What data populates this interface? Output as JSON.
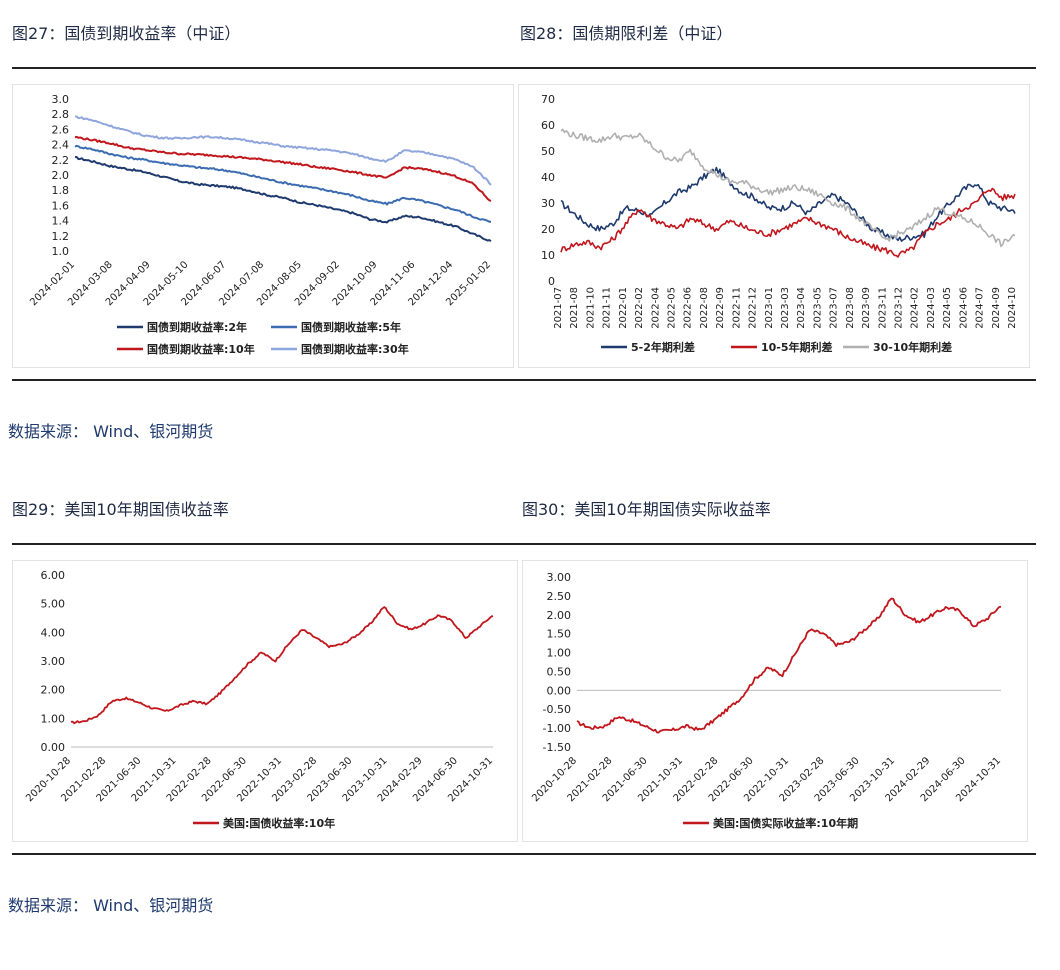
{
  "figures": {
    "fig27_title": "图27：国债到期收益率（中证）",
    "fig28_title": "图28：国债期限利差（中证）",
    "fig29_title": "图29：美国10年期国债收益率",
    "fig30_title": "图30：美国10年期国债实际收益率"
  },
  "sources": {
    "row1": "数据来源：  Wind、银河期货",
    "row2": "数据来源：  Wind、银河期货"
  },
  "chart_data": [
    {
      "id": "fig27",
      "type": "line",
      "ylim": [
        1.0,
        3.0
      ],
      "yticks": [
        "3.0",
        "2.8",
        "2.6",
        "2.4",
        "2.2",
        "2.0",
        "1.8",
        "1.6",
        "1.4",
        "1.2",
        "1.0"
      ],
      "xticks": [
        "2024-02-01",
        "2024-03-08",
        "2024-04-09",
        "2024-05-10",
        "2024-06-07",
        "2024-07-08",
        "2024-08-05",
        "2024-09-02",
        "2024-10-09",
        "2024-11-06",
        "2024-12-04",
        "2025-01-02"
      ],
      "colors": [
        "#1f3a6e",
        "#3b6bb0",
        "#c0161c",
        "#8fa6dc"
      ],
      "series": [
        {
          "name": "国债到期收益率:2年",
          "values": [
            2.23,
            2.18,
            2.12,
            2.08,
            2.04,
            1.98,
            1.92,
            1.88,
            1.86,
            1.84,
            1.8,
            1.74,
            1.7,
            1.64,
            1.6,
            1.55,
            1.5,
            1.42,
            1.38,
            1.46,
            1.44,
            1.38,
            1.32,
            1.22,
            1.13
          ]
        },
        {
          "name": "国债到期收益率:5年",
          "values": [
            2.38,
            2.34,
            2.28,
            2.23,
            2.2,
            2.16,
            2.13,
            2.1,
            2.08,
            2.05,
            2.0,
            1.95,
            1.9,
            1.86,
            1.82,
            1.78,
            1.73,
            1.66,
            1.62,
            1.7,
            1.66,
            1.6,
            1.54,
            1.45,
            1.38
          ]
        },
        {
          "name": "国债到期收益率:10年",
          "values": [
            2.5,
            2.46,
            2.42,
            2.36,
            2.33,
            2.3,
            2.28,
            2.27,
            2.26,
            2.24,
            2.22,
            2.2,
            2.17,
            2.14,
            2.1,
            2.08,
            2.04,
            2.0,
            1.96,
            2.1,
            2.08,
            2.04,
            1.98,
            1.88,
            1.65
          ]
        },
        {
          "name": "国债到期收益率:30年",
          "values": [
            2.77,
            2.72,
            2.65,
            2.58,
            2.52,
            2.49,
            2.48,
            2.5,
            2.5,
            2.48,
            2.45,
            2.42,
            2.38,
            2.36,
            2.34,
            2.32,
            2.28,
            2.22,
            2.18,
            2.32,
            2.3,
            2.26,
            2.2,
            2.1,
            1.88
          ]
        }
      ]
    },
    {
      "id": "fig28",
      "type": "line",
      "ylim": [
        0,
        70
      ],
      "yticks": [
        "70",
        "60",
        "50",
        "40",
        "30",
        "20",
        "10",
        "0"
      ],
      "xticks": [
        "2021-07",
        "2021-08",
        "2021-10",
        "2021-11",
        "2022-01",
        "2022-02",
        "2022-04",
        "2022-05",
        "2022-06",
        "2022-08",
        "2022-09",
        "2022-11",
        "2022-12",
        "2023-01",
        "2023-03",
        "2023-04",
        "2023-05",
        "2023-07",
        "2023-08",
        "2023-09",
        "2023-11",
        "2023-12",
        "2024-02",
        "2024-03",
        "2024-05",
        "2024-06",
        "2024-07",
        "2024-09",
        "2024-10"
      ],
      "colors": [
        "#1f3a6e",
        "#c0161c",
        "#b0b0b0"
      ],
      "series": [
        {
          "name": "5-2年期利差",
          "values": [
            30,
            26,
            22,
            20,
            22,
            28,
            27,
            25,
            30,
            34,
            36,
            40,
            43,
            38,
            34,
            32,
            28,
            28,
            30,
            26,
            30,
            33,
            30,
            25,
            20,
            18,
            16,
            17,
            18,
            25,
            30,
            35,
            38,
            30,
            28,
            27
          ]
        },
        {
          "name": "10-5年期利差",
          "values": [
            12,
            14,
            15,
            13,
            16,
            22,
            28,
            24,
            22,
            20,
            24,
            22,
            20,
            23,
            21,
            19,
            18,
            20,
            22,
            24,
            22,
            20,
            17,
            15,
            13,
            12,
            10,
            12,
            18,
            22,
            24,
            28,
            30,
            36,
            32,
            33
          ]
        },
        {
          "name": "30-10年期利差",
          "values": [
            58,
            56,
            55,
            54,
            56,
            55,
            56,
            52,
            48,
            46,
            50,
            44,
            41,
            38,
            38,
            36,
            34,
            35,
            36,
            35,
            33,
            30,
            28,
            24,
            20,
            16,
            18,
            20,
            24,
            28,
            26,
            24,
            22,
            18,
            14,
            18
          ]
        }
      ]
    },
    {
      "id": "fig29",
      "type": "line",
      "ylim": [
        0,
        6
      ],
      "yticks": [
        "6.00",
        "5.00",
        "4.00",
        "3.00",
        "2.00",
        "1.00",
        "0.00"
      ],
      "xticks": [
        "2020-10-28",
        "2021-02-28",
        "2021-06-30",
        "2021-10-31",
        "2022-02-28",
        "2022-06-30",
        "2022-10-31",
        "2023-02-28",
        "2023-06-30",
        "2023-10-31",
        "2024-02-29",
        "2024-06-30",
        "2024-10-31"
      ],
      "colors": [
        "#c0161c"
      ],
      "series": [
        {
          "name": "美国:国债收益率:10年",
          "values": [
            0.85,
            0.9,
            1.1,
            1.6,
            1.7,
            1.55,
            1.35,
            1.25,
            1.45,
            1.6,
            1.5,
            1.9,
            2.4,
            2.9,
            3.3,
            3.0,
            3.6,
            4.1,
            3.8,
            3.5,
            3.6,
            3.9,
            4.3,
            4.9,
            4.3,
            4.1,
            4.3,
            4.6,
            4.4,
            3.8,
            4.2,
            4.6
          ]
        }
      ]
    },
    {
      "id": "fig30",
      "type": "line",
      "ylim": [
        -1.5,
        3.0
      ],
      "yticks": [
        "3.00",
        "2.50",
        "2.00",
        "1.50",
        "1.00",
        "0.50",
        "0.00",
        "-0.50",
        "-1.00",
        "-1.50"
      ],
      "xticks": [
        "2020-10-28",
        "2021-02-28",
        "2021-06-30",
        "2021-10-31",
        "2022-02-28",
        "2022-06-30",
        "2022-10-31",
        "2023-02-28",
        "2023-06-30",
        "2023-10-31",
        "2024-02-29",
        "2024-06-30",
        "2024-10-31"
      ],
      "colors": [
        "#c0161c"
      ],
      "series": [
        {
          "name": "美国:国债实际收益率:10年期",
          "values": [
            -0.85,
            -1.0,
            -0.95,
            -0.7,
            -0.8,
            -0.95,
            -1.1,
            -1.05,
            -0.95,
            -1.05,
            -0.8,
            -0.5,
            -0.2,
            0.3,
            0.6,
            0.4,
            1.0,
            1.6,
            1.5,
            1.2,
            1.3,
            1.6,
            1.9,
            2.45,
            2.0,
            1.8,
            2.0,
            2.2,
            2.1,
            1.7,
            1.9,
            2.25
          ]
        }
      ]
    }
  ]
}
